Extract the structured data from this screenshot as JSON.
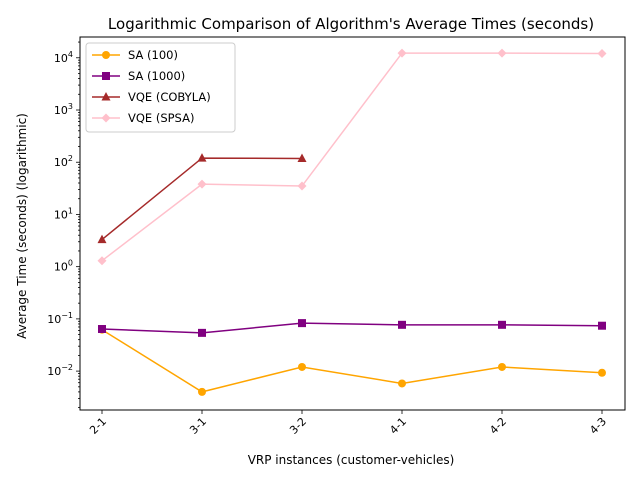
{
  "chart_data": {
    "type": "line",
    "title": "Logarithmic Comparison of Algorithm's Average Times (seconds)",
    "xlabel": "VRP instances (customer-vehicles)",
    "ylabel": "Average Time (seconds) (logarithmic)",
    "yscale": "log",
    "ylim": [
      0.0018,
      25000
    ],
    "yticks": [
      {
        "value": 0.01,
        "base": "10",
        "exp": "−2"
      },
      {
        "value": 0.1,
        "base": "10",
        "exp": "−1"
      },
      {
        "value": 1,
        "base": "10",
        "exp": "0"
      },
      {
        "value": 10,
        "base": "10",
        "exp": "1"
      },
      {
        "value": 100,
        "base": "10",
        "exp": "2"
      },
      {
        "value": 1000,
        "base": "10",
        "exp": "3"
      },
      {
        "value": 10000,
        "base": "10",
        "exp": "4"
      }
    ],
    "categories": [
      "2-1",
      "3-1",
      "3-2",
      "4-1",
      "4-2",
      "4-3"
    ],
    "grid": false,
    "legend_position": "top-left",
    "series": [
      {
        "name": "SA (100)",
        "color": "#FFA500",
        "marker": "circle",
        "values": [
          0.062,
          0.004,
          0.012,
          0.0058,
          0.012,
          0.0093
        ]
      },
      {
        "name": "SA (1000)",
        "color": "#800080",
        "marker": "square",
        "values": [
          0.064,
          0.054,
          0.083,
          0.077,
          0.077,
          0.074
        ]
      },
      {
        "name": "VQE (COBYLA)",
        "color": "#A52A2A",
        "marker": "triangle",
        "values": [
          3.3,
          120,
          118,
          null,
          null,
          null
        ]
      },
      {
        "name": "VQE (SPSA)",
        "color": "#FFC0CB",
        "marker": "diamond",
        "values": [
          1.3,
          38,
          35,
          12300,
          12300,
          12100
        ]
      }
    ]
  }
}
